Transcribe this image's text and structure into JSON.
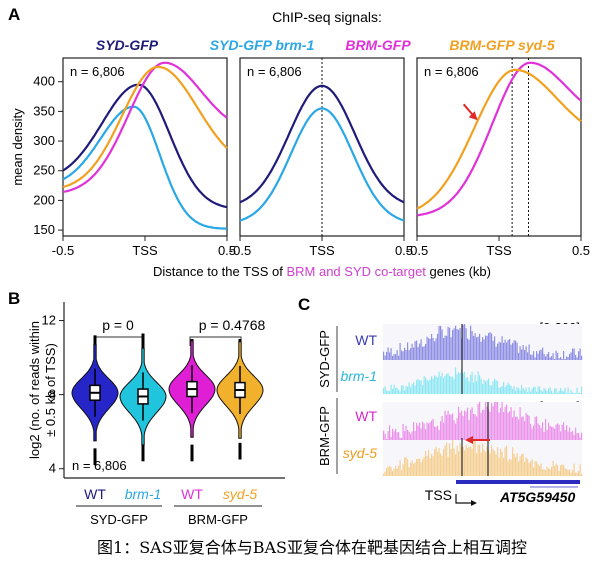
{
  "panel_labels": {
    "a": "A",
    "b": "B",
    "c": "C"
  },
  "caption": "图1：SAS亚复合体与BAS亚复合体在靶基因结合上相互调控",
  "colors": {
    "syd": "#1f1b7a",
    "brm1": "#2aa7e6",
    "brm": "#e032d8",
    "syd5": "#f2a020",
    "violin_wt1": "#2525c8",
    "violin_brm1": "#20c4dc",
    "violin_wt2": "#e01ed6",
    "violin_syd5": "#f2b12c",
    "arrow": "#e02a2a",
    "track_syd_wt": "#8e8fe4",
    "track_brm1": "#8ee8f4",
    "track_brm_wt": "#ec92ea",
    "track_syd5": "#f6cf92"
  },
  "chart_data": [
    {
      "id": "A",
      "type": "line",
      "title": "ChIP-seq signals:",
      "legend": [
        "SYD-GFP",
        "SYD-GFP brm-1",
        "BRM-GFP",
        "BRM-GFP syd-5"
      ],
      "ylabel": "mean density",
      "xlabel_parts": {
        "prefix": "Distance to the TSS of ",
        "highlight": "BRM and SYD co-target",
        "suffix": " genes (kb)"
      },
      "ylim": [
        140,
        440
      ],
      "yticks": [
        "150",
        "200",
        "250",
        "300",
        "350",
        "400"
      ],
      "xlim": [
        -0.5,
        0.5
      ],
      "xticks": [
        "-0.5",
        "TSS",
        "0.5"
      ],
      "panels": [
        {
          "annotation": "n = 6,806",
          "series": [
            {
              "name": "SYD-GFP",
              "peak_x": -0.04,
              "peak_y": 395,
              "base_left": 232,
              "base_right": 185,
              "width_left": 0.22,
              "width_right": 0.19
            },
            {
              "name": "SYD-GFP brm-1",
              "peak_x": -0.07,
              "peak_y": 358,
              "base_left": 222,
              "base_right": 152,
              "width_left": 0.2,
              "width_right": 0.16
            },
            {
              "name": "BRM-GFP",
              "peak_x": 0.12,
              "peak_y": 432,
              "base_left": 210,
              "base_right": 312,
              "width_left": 0.22,
              "width_right": 0.22
            },
            {
              "name": "BRM-GFP syd-5",
              "peak_x": 0.08,
              "peak_y": 425,
              "base_left": 216,
              "base_right": 250,
              "width_left": 0.22,
              "width_right": 0.24
            }
          ]
        },
        {
          "annotation": "n = 6,806",
          "vlines": [
            0.0
          ],
          "series": [
            {
              "name": "SYD-GFP",
              "peak_x": 0.0,
              "peak_y": 393,
              "base_left": 188,
              "base_right": 188,
              "width_left": 0.2,
              "width_right": 0.2
            },
            {
              "name": "SYD-GFP brm-1",
              "peak_x": 0.0,
              "peak_y": 355,
              "base_left": 160,
              "base_right": 160,
              "width_left": 0.19,
              "width_right": 0.19
            }
          ]
        },
        {
          "annotation": "n = 6,806",
          "vlines": [
            0.08,
            0.18
          ],
          "arrow": true,
          "series": [
            {
              "name": "BRM-GFP",
              "peak_x": 0.19,
              "peak_y": 432,
              "base_left": 172,
              "base_right": 330,
              "width_left": 0.23,
              "width_right": 0.22
            },
            {
              "name": "BRM-GFP syd-5",
              "peak_x": 0.1,
              "peak_y": 420,
              "base_left": 172,
              "base_right": 300,
              "width_left": 0.25,
              "width_right": 0.25
            }
          ]
        }
      ]
    },
    {
      "id": "B",
      "type": "violin",
      "ylabel": "log2 (no. of reads within ± 0.5 kb of TSS)",
      "ylabel_lines": [
        "log2 (no. of reads within",
        "± 0.5 kb of TSS)"
      ],
      "ylim": [
        3.5,
        13
      ],
      "yticks": [
        "4",
        "8",
        "12"
      ],
      "annotation": "n = 6,806",
      "categories": [
        "WT",
        "brm-1",
        "WT",
        "syd-5"
      ],
      "groups": [
        "SYD-GFP",
        "BRM-GFP"
      ],
      "comparisons": [
        "p = 0",
        "p = 0.4768"
      ],
      "medians": [
        8.1,
        7.9,
        8.3,
        8.25
      ],
      "q1": [
        7.7,
        7.5,
        7.9,
        7.85
      ],
      "q3": [
        8.5,
        8.3,
        8.7,
        8.65
      ],
      "whisker_min": [
        4.2,
        4.4,
        4.4,
        4.5
      ],
      "whisker_max": [
        11.2,
        11.3,
        11.0,
        11.0
      ]
    },
    {
      "id": "C",
      "type": "track",
      "range_labels": [
        "[0-800]",
        "[0-800]"
      ],
      "groups": [
        "SYD-GFP",
        "BRM-GFP"
      ],
      "tracks": [
        "WT",
        "brm-1",
        "WT",
        "syd-5"
      ],
      "tss_label": "TSS",
      "gene": "AT5G59450"
    }
  ]
}
